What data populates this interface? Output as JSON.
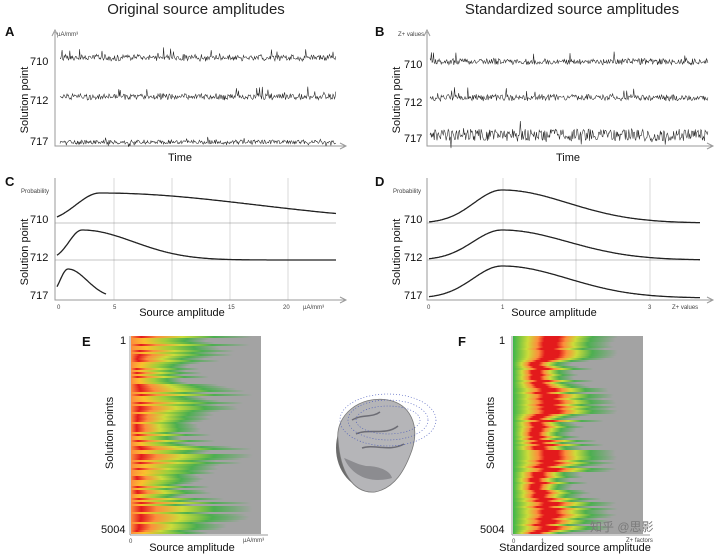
{
  "figure": {
    "left_title": "Original source amplitudes",
    "right_title": "Standardized source amplitudes",
    "watermark": "知乎 @思影"
  },
  "panels": {
    "A": {
      "letter": "A",
      "unit": "µA/mm³",
      "y_label": "Solution point",
      "x_label": "Time",
      "rows": [
        "710",
        "712",
        "717"
      ]
    },
    "B": {
      "letter": "B",
      "unit": "Z+ values",
      "y_label": "Solution point",
      "x_label": "Time",
      "rows": [
        "710",
        "712",
        "717"
      ]
    },
    "C": {
      "letter": "C",
      "unit": "Probability",
      "y_label": "Solution point",
      "x_label": "Source amplitude",
      "rows": [
        "710",
        "712",
        "717"
      ],
      "ticks": [
        "0",
        "5",
        "15",
        "20"
      ],
      "x_unit": "µA/mm³"
    },
    "D": {
      "letter": "D",
      "unit": "Probability",
      "y_label": "Solution point",
      "x_label": "Source amplitude",
      "rows": [
        "710",
        "712",
        "717"
      ],
      "ticks": [
        "0",
        "1",
        "3"
      ],
      "x_unit": "Z+ values"
    },
    "E": {
      "letter": "E",
      "y_label": "Solution points",
      "x_label": "Source amplitude",
      "top": "1",
      "bottom": "5004",
      "tick0": "0",
      "x_unit": "µA/mm³"
    },
    "F": {
      "letter": "F",
      "y_label": "Solution points",
      "x_label": "Standardized source amplitude",
      "top": "1",
      "bottom": "5004",
      "tick0": "0",
      "tick1": "1",
      "x_unit": "Z+ factors"
    }
  },
  "colors": {
    "hot": "#e31a1c",
    "warm": "#fd8d3c",
    "mid": "#9ecf3a",
    "cool": "#3cb44b",
    "bg": "#a3a3a3"
  }
}
